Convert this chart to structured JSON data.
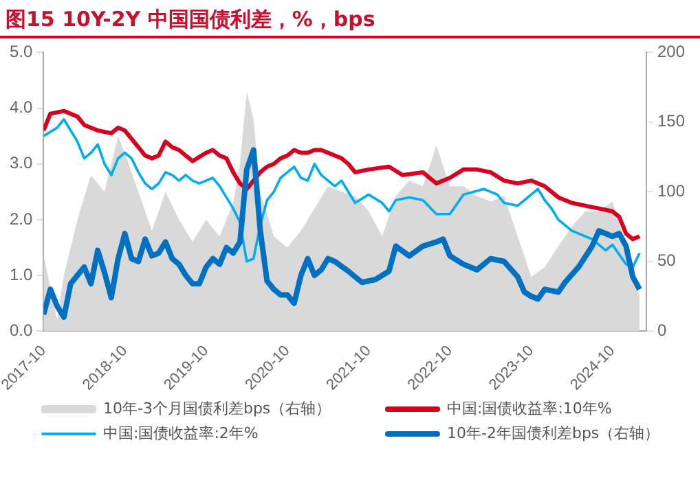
{
  "chart_data": {
    "type": "line",
    "title": "图15  10Y-2Y 中国国债利差，%，bps",
    "xlim": [
      "2017-10",
      "2025-03"
    ],
    "xticks": [
      "2017-10",
      "2018-10",
      "2019-10",
      "2020-10",
      "2021-10",
      "2022-10",
      "2023-10",
      "2024-10"
    ],
    "ylim": [
      0,
      5
    ],
    "yticks": [
      {
        "value": 0,
        "label": "0.0"
      },
      {
        "value": 1,
        "label": "1.0"
      },
      {
        "value": 2,
        "label": "2.0"
      },
      {
        "value": 3,
        "label": "3.0"
      },
      {
        "value": 4,
        "label": "4.0"
      },
      {
        "value": 5,
        "label": "5.0"
      }
    ],
    "y2lim": [
      0,
      200
    ],
    "y2ticks": [
      0,
      50,
      100,
      150,
      200
    ],
    "legend": "bottom",
    "grid": false,
    "series": [
      {
        "name": "10年-3个月国债利差bps（右轴）",
        "type": "area",
        "axis": "y2",
        "color": "#d9d9d9",
        "x": [
          "2017-10",
          "2017-12",
          "2018-01",
          "2018-03",
          "2018-05",
          "2018-07",
          "2018-09",
          "2018-10",
          "2018-12",
          "2019-02",
          "2019-04",
          "2019-06",
          "2019-08",
          "2019-10",
          "2019-12",
          "2020-02",
          "2020-03",
          "2020-04",
          "2020-05",
          "2020-06",
          "2020-08",
          "2020-10",
          "2020-12",
          "2021-02",
          "2021-04",
          "2021-06",
          "2021-08",
          "2021-10",
          "2021-12",
          "2022-02",
          "2022-04",
          "2022-06",
          "2022-08",
          "2022-10",
          "2022-12",
          "2023-02",
          "2023-04",
          "2023-06",
          "2023-08",
          "2023-10",
          "2023-12",
          "2024-02",
          "2024-04",
          "2024-06",
          "2024-08",
          "2024-10",
          "2024-12",
          "2025-02"
        ],
        "values": [
          55,
          8,
          40,
          80,
          112,
          100,
          140,
          128,
          100,
          72,
          100,
          80,
          64,
          80,
          68,
          92,
          120,
          172,
          152,
          100,
          68,
          60,
          72,
          88,
          104,
          100,
          97,
          86,
          68,
          97,
          108,
          104,
          133,
          104,
          104,
          97,
          93,
          97,
          68,
          39,
          46,
          61,
          75,
          86,
          86,
          93,
          61,
          25
        ]
      },
      {
        "name": "中国:国债收益率:10年%",
        "axis": "y",
        "color": "#d7001f",
        "x": [
          "2017-10",
          "2017-11",
          "2018-01",
          "2018-03",
          "2018-04",
          "2018-06",
          "2018-08",
          "2018-09",
          "2018-10",
          "2018-12",
          "2019-01",
          "2019-02",
          "2019-03",
          "2019-04",
          "2019-05",
          "2019-06",
          "2019-08",
          "2019-10",
          "2019-11",
          "2019-12",
          "2020-01",
          "2020-02",
          "2020-03",
          "2020-04",
          "2020-05",
          "2020-06",
          "2020-07",
          "2020-08",
          "2020-09",
          "2020-10",
          "2020-11",
          "2020-12",
          "2021-01",
          "2021-02",
          "2021-03",
          "2021-04",
          "2021-05",
          "2021-06",
          "2021-07",
          "2021-08",
          "2021-10",
          "2022-01",
          "2022-03",
          "2022-06",
          "2022-08",
          "2022-10",
          "2022-12",
          "2023-02",
          "2023-04",
          "2023-06",
          "2023-08",
          "2023-10",
          "2023-12",
          "2024-02",
          "2024-04",
          "2024-06",
          "2024-08",
          "2024-10",
          "2024-11",
          "2024-12",
          "2025-01",
          "2025-02"
        ],
        "values": [
          3.6,
          3.9,
          3.95,
          3.85,
          3.7,
          3.6,
          3.55,
          3.65,
          3.6,
          3.3,
          3.15,
          3.1,
          3.15,
          3.4,
          3.3,
          3.25,
          3.05,
          3.2,
          3.25,
          3.15,
          3.1,
          2.85,
          2.65,
          2.55,
          2.7,
          2.85,
          2.95,
          3.0,
          3.1,
          3.15,
          3.25,
          3.2,
          3.2,
          3.25,
          3.25,
          3.2,
          3.15,
          3.1,
          3.0,
          2.85,
          2.9,
          2.95,
          2.8,
          2.85,
          2.65,
          2.75,
          2.9,
          2.9,
          2.85,
          2.7,
          2.65,
          2.7,
          2.6,
          2.4,
          2.3,
          2.25,
          2.2,
          2.15,
          2.05,
          1.75,
          1.65,
          1.7
        ]
      },
      {
        "name": "中国:国债收益率:2年%",
        "axis": "y",
        "color": "#00aeef",
        "x": [
          "2017-10",
          "2017-12",
          "2018-01",
          "2018-02",
          "2018-03",
          "2018-04",
          "2018-05",
          "2018-06",
          "2018-07",
          "2018-08",
          "2018-09",
          "2018-10",
          "2018-11",
          "2018-12",
          "2019-01",
          "2019-02",
          "2019-03",
          "2019-04",
          "2019-05",
          "2019-06",
          "2019-07",
          "2019-08",
          "2019-09",
          "2019-10",
          "2019-11",
          "2019-12",
          "2020-01",
          "2020-02",
          "2020-03",
          "2020-04",
          "2020-05",
          "2020-06",
          "2020-07",
          "2020-08",
          "2020-09",
          "2020-10",
          "2020-11",
          "2020-12",
          "2021-01",
          "2021-02",
          "2021-03",
          "2021-04",
          "2021-05",
          "2021-06",
          "2021-08",
          "2021-10",
          "2021-12",
          "2022-01",
          "2022-02",
          "2022-04",
          "2022-06",
          "2022-08",
          "2022-10",
          "2022-12",
          "2023-03",
          "2023-05",
          "2023-06",
          "2023-08",
          "2023-10",
          "2023-11",
          "2023-12",
          "2024-01",
          "2024-02",
          "2024-04",
          "2024-05",
          "2024-07",
          "2024-09",
          "2024-10",
          "2024-12",
          "2025-01",
          "2025-02"
        ],
        "values": [
          3.5,
          3.65,
          3.8,
          3.6,
          3.4,
          3.1,
          3.2,
          3.35,
          3.0,
          2.8,
          3.1,
          3.2,
          3.1,
          2.85,
          2.65,
          2.55,
          2.65,
          2.85,
          2.8,
          2.7,
          2.8,
          2.7,
          2.65,
          2.7,
          2.75,
          2.6,
          2.4,
          2.2,
          1.95,
          1.25,
          1.3,
          1.9,
          2.35,
          2.5,
          2.75,
          2.85,
          2.95,
          2.75,
          2.7,
          3.0,
          2.8,
          2.7,
          2.6,
          2.7,
          2.3,
          2.45,
          2.3,
          2.15,
          2.35,
          2.4,
          2.35,
          2.1,
          2.1,
          2.45,
          2.55,
          2.45,
          2.3,
          2.25,
          2.45,
          2.55,
          2.35,
          2.2,
          2.0,
          1.8,
          1.75,
          1.65,
          1.45,
          1.55,
          1.2,
          1.15,
          1.4
        ]
      },
      {
        "name": "10年-2年国债利差bps（右轴）",
        "axis": "y2",
        "color": "#0070c0",
        "x": [
          "2017-10",
          "2017-11",
          "2017-12",
          "2018-01",
          "2018-02",
          "2018-03",
          "2018-04",
          "2018-05",
          "2018-06",
          "2018-07",
          "2018-08",
          "2018-09",
          "2018-10",
          "2018-11",
          "2018-12",
          "2019-01",
          "2019-02",
          "2019-03",
          "2019-04",
          "2019-05",
          "2019-06",
          "2019-07",
          "2019-08",
          "2019-09",
          "2019-10",
          "2019-11",
          "2019-12",
          "2020-01",
          "2020-02",
          "2020-03",
          "2020-04",
          "2020-05",
          "2020-06",
          "2020-07",
          "2020-08",
          "2020-09",
          "2020-10",
          "2020-11",
          "2020-12",
          "2021-01",
          "2021-02",
          "2021-03",
          "2021-04",
          "2021-05",
          "2021-07",
          "2021-09",
          "2021-11",
          "2022-01",
          "2022-02",
          "2022-04",
          "2022-06",
          "2022-08",
          "2022-09",
          "2022-10",
          "2022-12",
          "2023-02",
          "2023-04",
          "2023-06",
          "2023-08",
          "2023-09",
          "2023-10",
          "2023-11",
          "2023-12",
          "2024-02",
          "2024-03",
          "2024-05",
          "2024-07",
          "2024-08",
          "2024-09",
          "2024-10",
          "2024-11",
          "2024-12",
          "2025-01",
          "2025-02"
        ],
        "values": [
          12,
          30,
          18,
          10,
          34,
          40,
          46,
          34,
          58,
          42,
          24,
          52,
          70,
          52,
          50,
          66,
          54,
          56,
          64,
          52,
          48,
          40,
          34,
          34,
          46,
          52,
          48,
          60,
          56,
          64,
          116,
          130,
          72,
          36,
          30,
          26,
          26,
          20,
          40,
          52,
          40,
          44,
          52,
          50,
          43,
          35,
          37,
          43,
          61,
          54,
          61,
          64,
          66,
          54,
          48,
          44,
          52,
          50,
          39,
          28,
          25,
          23,
          30,
          28,
          35,
          46,
          61,
          72,
          70,
          68,
          70,
          61,
          39,
          30
        ]
      }
    ]
  }
}
